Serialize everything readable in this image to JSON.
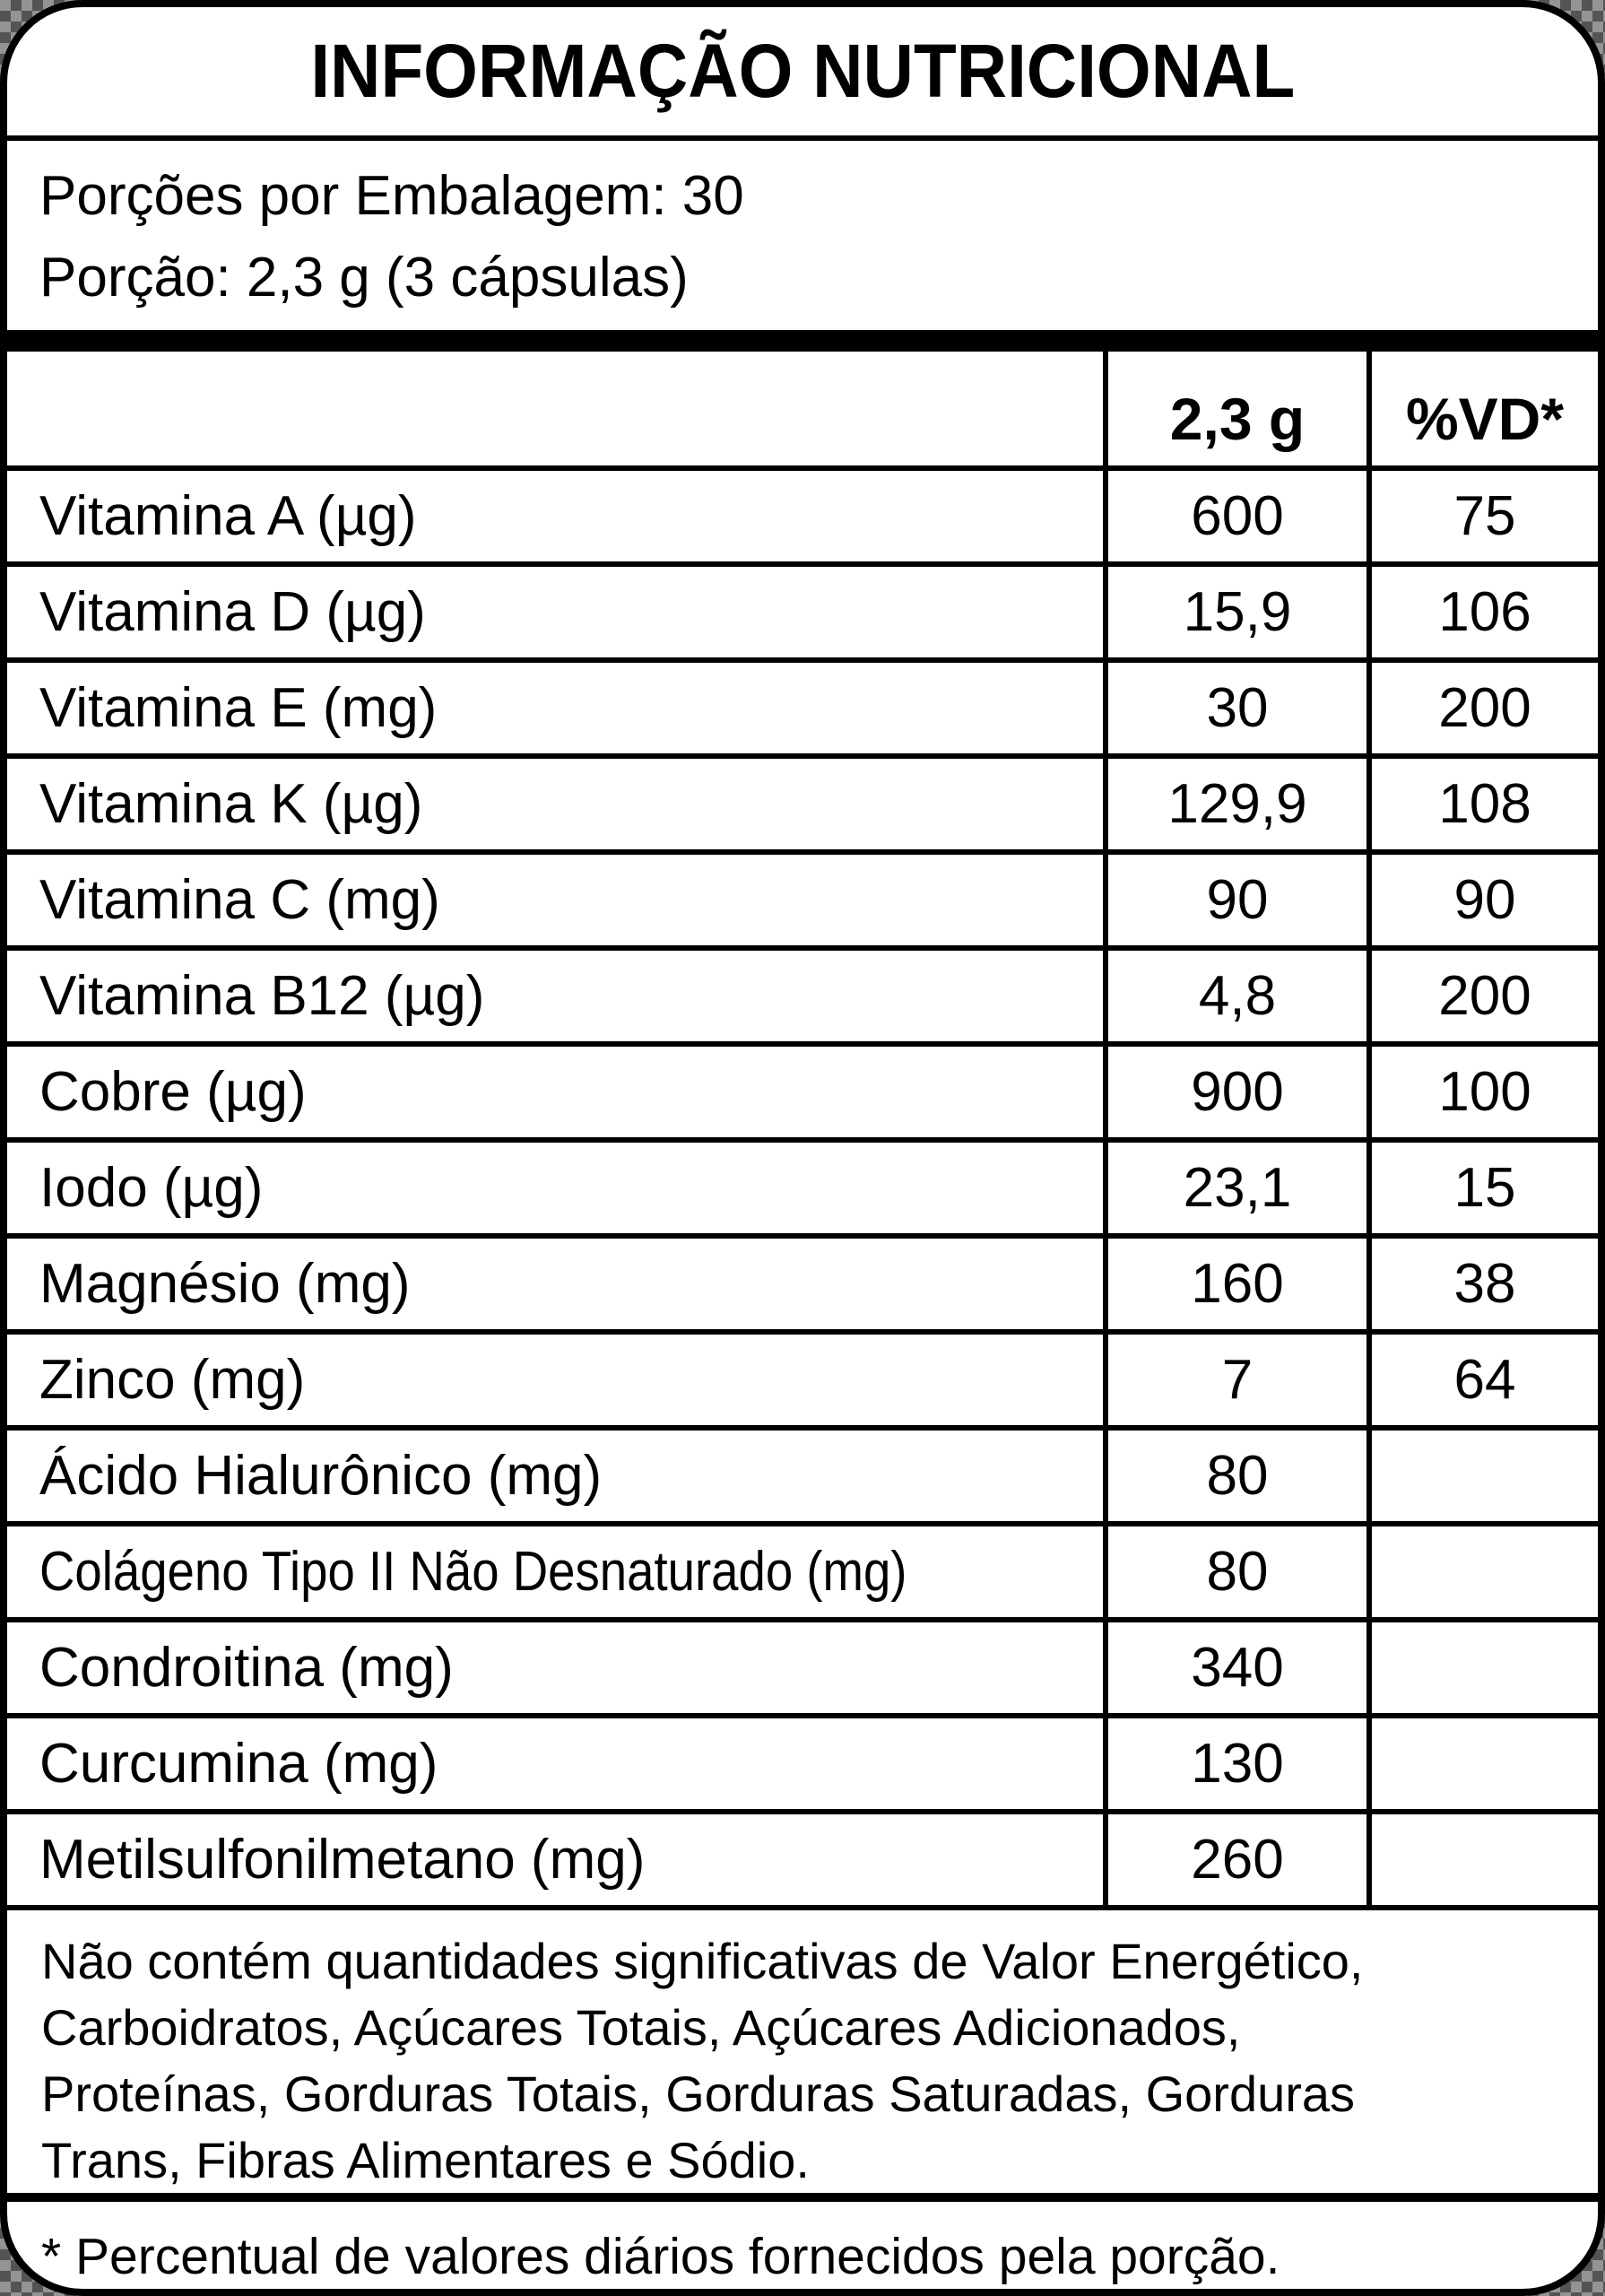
{
  "title": "INFORMAÇÃO NUTRICIONAL",
  "serving": {
    "servings_per_package": "Porções por Embalagem: 30",
    "serving_size": "Porção: 2,3 g (3 cápsulas)"
  },
  "table": {
    "header": {
      "amount": "2,3 g",
      "daily_value": "%VD*"
    },
    "rows": [
      {
        "label": "Vitamina A (µg)",
        "amount": "600",
        "dv": "75"
      },
      {
        "label": "Vitamina D (µg)",
        "amount": "15,9",
        "dv": "106"
      },
      {
        "label": "Vitamina E (mg)",
        "amount": "30",
        "dv": "200"
      },
      {
        "label": "Vitamina K (µg)",
        "amount": "129,9",
        "dv": "108"
      },
      {
        "label": "Vitamina C (mg)",
        "amount": "90",
        "dv": "90"
      },
      {
        "label": "Vitamina B12 (µg)",
        "amount": "4,8",
        "dv": "200"
      },
      {
        "label": "Cobre (µg)",
        "amount": "900",
        "dv": "100"
      },
      {
        "label": "Iodo (µg)",
        "amount": "23,1",
        "dv": "15"
      },
      {
        "label": "Magnésio (mg)",
        "amount": "160",
        "dv": "38"
      },
      {
        "label": "Zinco (mg)",
        "amount": "7",
        "dv": "64"
      },
      {
        "label": "Ácido Hialurônico (mg)",
        "amount": "80",
        "dv": ""
      },
      {
        "label": "Colágeno Tipo II Não Desnaturado (mg)",
        "amount": "80",
        "dv": ""
      },
      {
        "label": "Condroitina (mg)",
        "amount": "340",
        "dv": ""
      },
      {
        "label": "Curcumina (mg)",
        "amount": "130",
        "dv": ""
      },
      {
        "label": "Metilsulfonilmetano (mg)",
        "amount": "260",
        "dv": ""
      }
    ]
  },
  "notes": {
    "no_significant_lines": [
      "Não contém quantidades significativas de Valor Energético,",
      "Carboidratos, Açúcares Totais, Açúcares Adicionados,",
      "Proteínas, Gorduras Totais, Gorduras Saturadas, Gorduras",
      "Trans, Fibras Alimentares e Sódio."
    ],
    "footnote": "* Percentual de valores diários fornecidos pela porção."
  },
  "colors": {
    "border": "#000000",
    "background": "#ffffff",
    "checker_dark": "#545454",
    "checker_light": "#949494"
  }
}
